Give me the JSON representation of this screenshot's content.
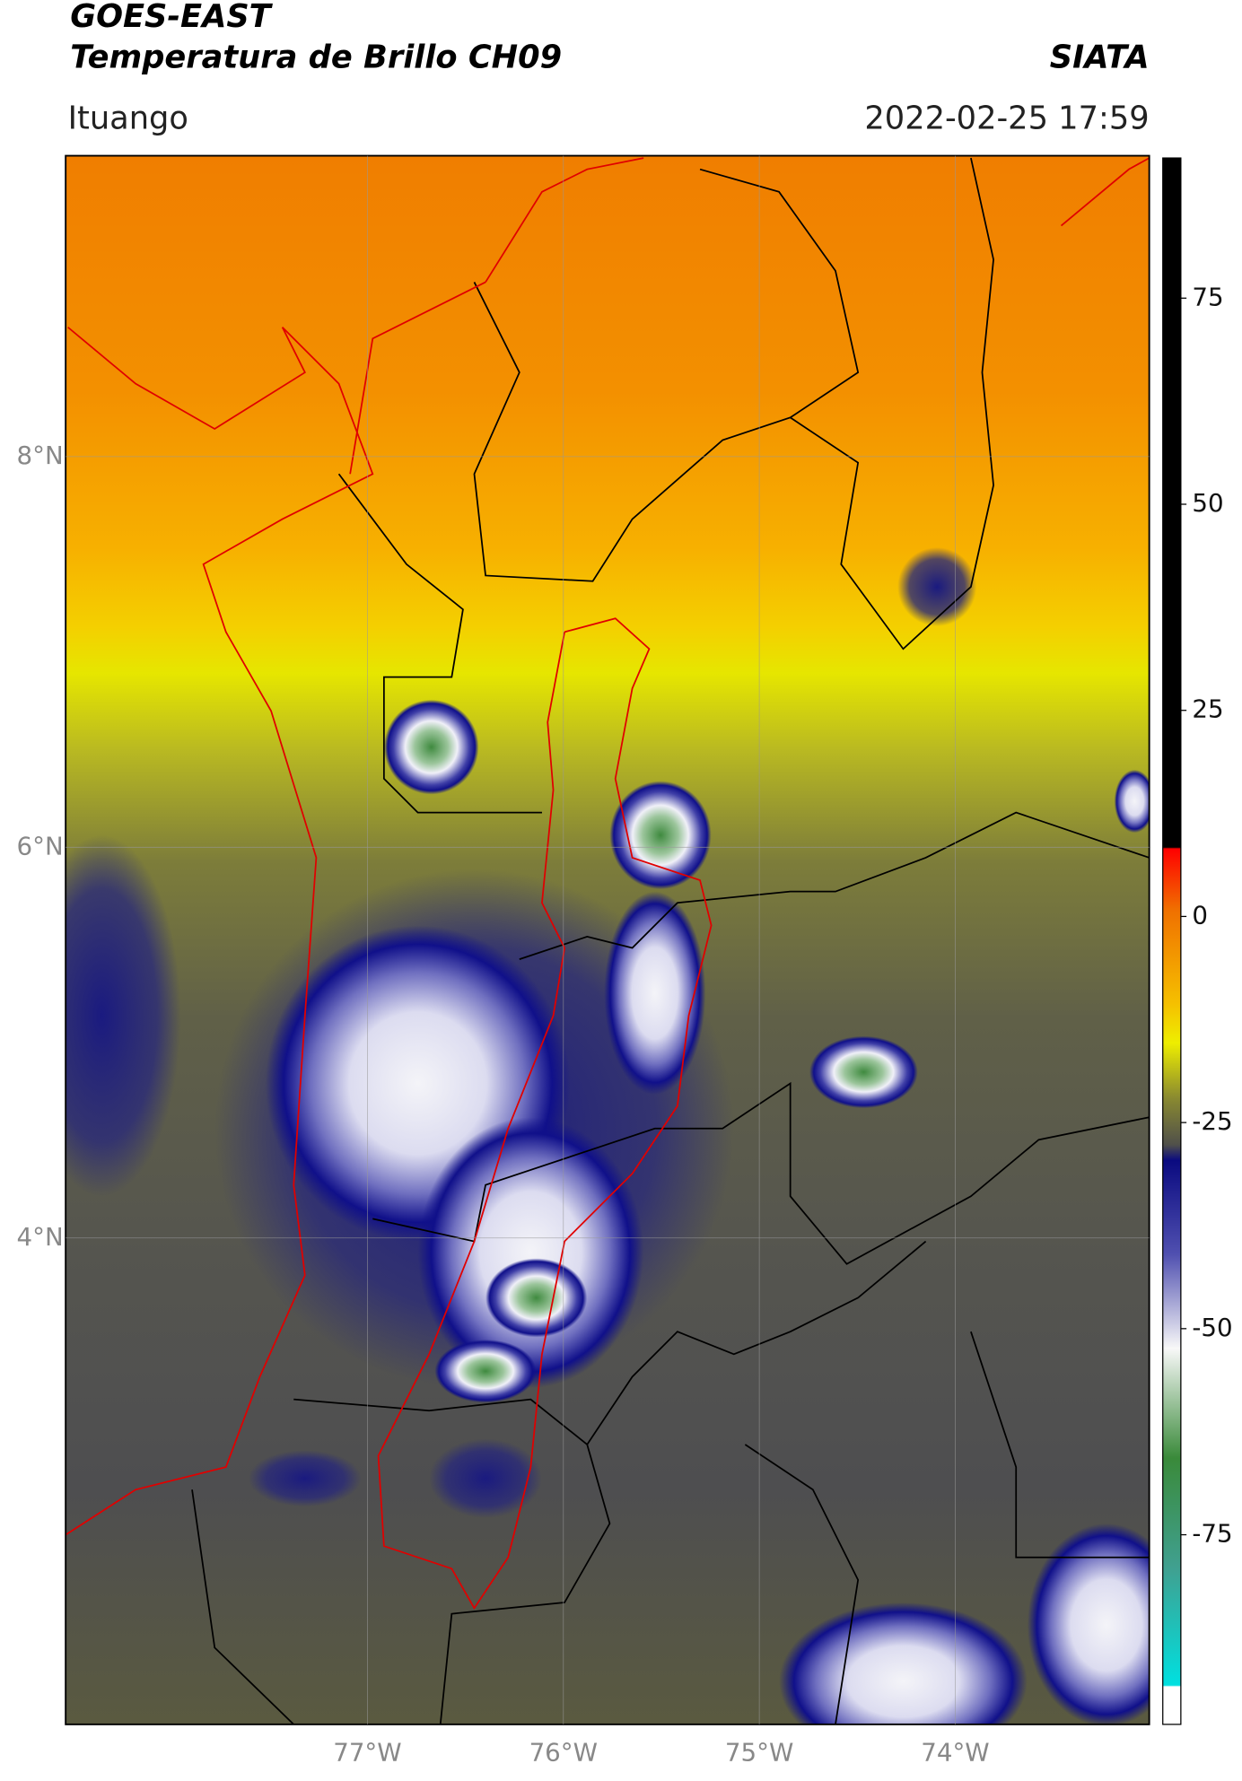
{
  "header": {
    "title": "GOES-EAST",
    "subtitle": "Temperatura de Brillo CH09",
    "brand": "SIATA",
    "location": "Ituango",
    "timestamp": "2022-02-25 17:59"
  },
  "map": {
    "xlim": [
      -78.54,
      -73.01
    ],
    "ylim": [
      1.51,
      9.54
    ],
    "xticks": [
      {
        "value": -77,
        "label": "77°W"
      },
      {
        "value": -76,
        "label": "76°W"
      },
      {
        "value": -75,
        "label": "75°W"
      },
      {
        "value": -74,
        "label": "74°W"
      }
    ],
    "yticks": [
      {
        "value": 4,
        "label": "4°N"
      },
      {
        "value": 6,
        "label": "6°N"
      },
      {
        "value": 8,
        "label": "8°N"
      }
    ]
  },
  "colorbar": {
    "lim": [
      -98,
      92
    ],
    "ticks": [
      75,
      50,
      25,
      0,
      -25,
      -50,
      -75
    ]
  }
}
